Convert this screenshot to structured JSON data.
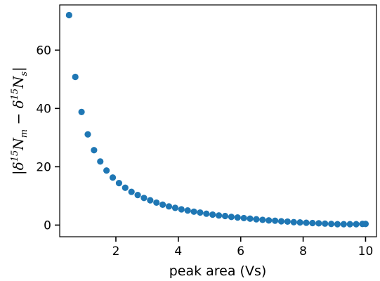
{
  "chart_data": {
    "type": "scatter",
    "xlabel": "peak area (Vs)",
    "ylabel": "|δ15Nm − δ15Ns|",
    "xlim": [
      0.2,
      10.35
    ],
    "ylim": [
      -4,
      75.5
    ],
    "xticks": [
      2,
      4,
      6,
      8,
      10
    ],
    "yticks": [
      0,
      20,
      40,
      60
    ],
    "grid": false,
    "point_color": "#1f77b4",
    "series": [
      {
        "x": [
          0.5,
          0.7,
          0.9,
          1.1,
          1.3,
          1.5,
          1.7,
          1.9,
          2.1,
          2.3,
          2.5,
          2.7,
          2.9,
          3.1,
          3.3,
          3.5,
          3.7,
          3.9,
          4.1,
          4.3,
          4.5,
          4.7,
          4.9,
          5.1,
          5.3,
          5.5,
          5.7,
          5.9,
          6.1,
          6.3,
          6.5,
          6.7,
          6.9,
          7.1,
          7.3,
          7.5,
          7.7,
          7.9,
          8.1,
          8.3,
          8.5,
          8.7,
          8.9,
          9.1,
          9.3,
          9.5,
          9.7,
          9.9,
          10.0
        ],
        "y": [
          72.0,
          50.8,
          38.8,
          31.1,
          25.7,
          21.8,
          18.7,
          16.3,
          14.4,
          12.8,
          11.4,
          10.3,
          9.3,
          8.5,
          7.7,
          7.0,
          6.4,
          5.9,
          5.4,
          5.0,
          4.6,
          4.3,
          3.9,
          3.6,
          3.3,
          3.1,
          2.8,
          2.6,
          2.4,
          2.2,
          2.0,
          1.8,
          1.6,
          1.5,
          1.3,
          1.2,
          1.0,
          0.9,
          0.8,
          0.7,
          0.6,
          0.5,
          0.4,
          0.3,
          0.3,
          0.3,
          0.3,
          0.4,
          0.4
        ]
      }
    ]
  }
}
